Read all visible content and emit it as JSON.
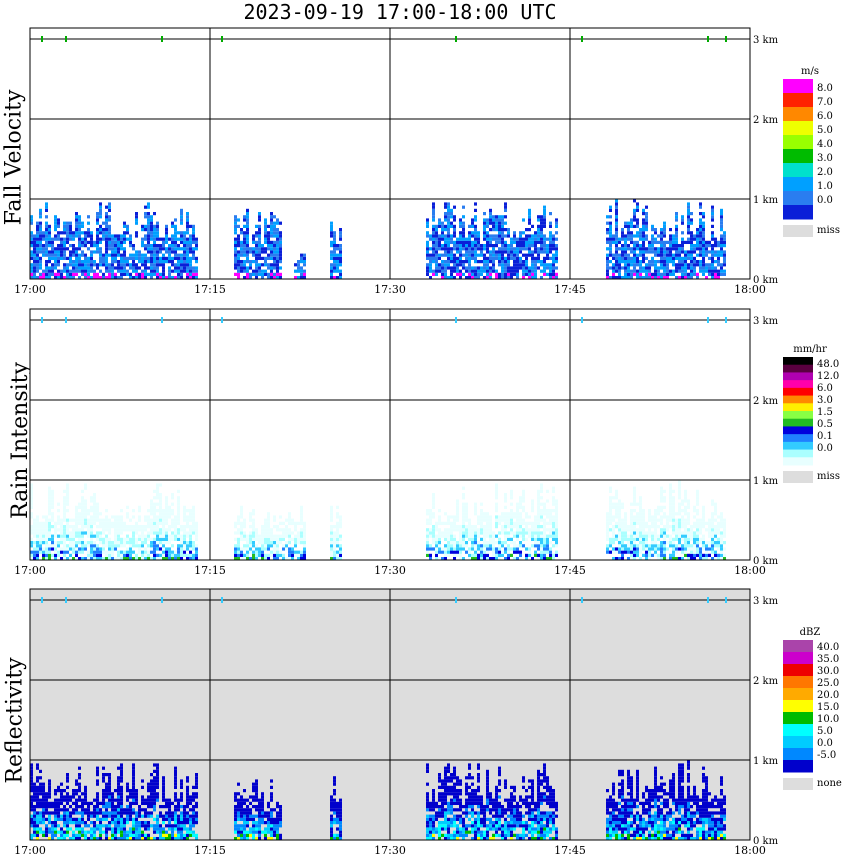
{
  "title": "2023-09-19   17:00-18:00 UTC",
  "colors": {
    "miss": "#dddddd",
    "background": "#ffffff",
    "grid": "#000000"
  },
  "chart_data": [
    {
      "type": "heatmap",
      "title": "Fall Velocity",
      "ylabel": "Fall Velocity",
      "x_ticks": [
        "17:00",
        "17:15",
        "17:30",
        "17:45",
        "18:00"
      ],
      "y_ticks": [
        "0 km",
        "1 km",
        "2 km",
        "3 km"
      ],
      "ylim": [
        0,
        3
      ],
      "grid": true,
      "colorbar": {
        "unit": "m/s",
        "levels": [
          "8.0",
          "7.0",
          "6.0",
          "5.0",
          "4.0",
          "3.0",
          "2.0",
          "1.0",
          "0.0"
        ],
        "colors": [
          "#ff00ff",
          "#ff2200",
          "#ff8800",
          "#eeff00",
          "#99ff00",
          "#00bb00",
          "#00e0cc",
          "#00a0ff",
          "#2a7df0",
          "#0a1fd8"
        ],
        "miss_label": "miss"
      },
      "background": "#ffffff",
      "echo_columns": [
        {
          "start": "17:00",
          "end": "17:14",
          "top_km": 0.95
        },
        {
          "start": "17:17",
          "end": "17:21",
          "top_km": 0.85
        },
        {
          "start": "17:22",
          "end": "17:23",
          "top_km": 0.3
        },
        {
          "start": "17:25",
          "end": "17:26",
          "top_km": 0.75
        },
        {
          "start": "17:33",
          "end": "17:44",
          "top_km": 0.95
        },
        {
          "start": "17:48",
          "end": "17:58",
          "top_km": 1.0
        }
      ]
    },
    {
      "type": "heatmap",
      "title": "Rain Intensity",
      "ylabel": "Rain Intensity",
      "x_ticks": [
        "17:00",
        "17:15",
        "17:30",
        "17:45",
        "18:00"
      ],
      "y_ticks": [
        "0 km",
        "1 km",
        "2 km",
        "3 km"
      ],
      "ylim": [
        0,
        3
      ],
      "grid": true,
      "colorbar": {
        "unit": "mm/hr",
        "levels": [
          "48.0",
          "12.0",
          "6.0",
          "3.0",
          "1.5",
          "0.5",
          "0.1",
          "0.0"
        ],
        "colors": [
          "#000000",
          "#5a0040",
          "#b000b0",
          "#ff00aa",
          "#ff0000",
          "#ff8800",
          "#ffee00",
          "#88ff44",
          "#22bb22",
          "#0000dd",
          "#2080ff",
          "#33ccff",
          "#aaffff",
          "#e8ffff"
        ],
        "miss_label": "miss"
      },
      "background": "#ffffff",
      "echo_columns": [
        {
          "start": "17:00",
          "end": "17:14",
          "top_km": 0.95
        },
        {
          "start": "17:17",
          "end": "17:23",
          "top_km": 0.65
        },
        {
          "start": "17:25",
          "end": "17:26",
          "top_km": 0.7
        },
        {
          "start": "17:33",
          "end": "17:44",
          "top_km": 0.95
        },
        {
          "start": "17:48",
          "end": "17:58",
          "top_km": 1.0
        }
      ]
    },
    {
      "type": "heatmap",
      "title": "Reflectivity",
      "ylabel": "Reflectivity",
      "x_ticks": [
        "17:00",
        "17:15",
        "17:30",
        "17:45",
        "18:00"
      ],
      "y_ticks": [
        "0 km",
        "1 km",
        "2 km",
        "3 km"
      ],
      "ylim": [
        0,
        3
      ],
      "grid": true,
      "colorbar": {
        "unit": "dBZ",
        "levels": [
          "40.0",
          "35.0",
          "30.0",
          "25.0",
          "20.0",
          "15.0",
          "10.0",
          "5.0",
          "0.0",
          "-5.0"
        ],
        "colors": [
          "#aa44aa",
          "#cc00cc",
          "#ee0000",
          "#ff7700",
          "#ffaa00",
          "#ffff00",
          "#00bb00",
          "#00ffff",
          "#00ccff",
          "#0088ff",
          "#0000cc"
        ],
        "miss_label": "none"
      },
      "background": "#dddddd",
      "echo_columns": [
        {
          "start": "17:00",
          "end": "17:14",
          "top_km": 0.95
        },
        {
          "start": "17:17",
          "end": "17:21",
          "top_km": 0.8
        },
        {
          "start": "17:25",
          "end": "17:26",
          "top_km": 0.8
        },
        {
          "start": "17:33",
          "end": "17:44",
          "top_km": 0.95
        },
        {
          "start": "17:48",
          "end": "17:58",
          "top_km": 1.0
        }
      ]
    }
  ]
}
